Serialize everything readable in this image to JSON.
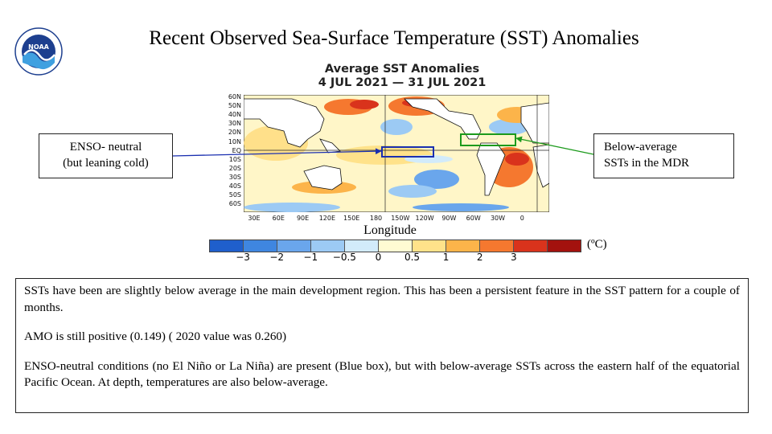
{
  "slide": {
    "title": "Recent Observed Sea-Surface Temperature (SST) Anomalies",
    "logo_name": "noaa-logo"
  },
  "map": {
    "title_line1": "Average SST Anomalies",
    "title_line2": "4 JUL 2021 — 31 JUL 2021",
    "lat_labels": [
      "60N",
      "50N",
      "40N",
      "30N",
      "20N",
      "10N",
      "EQ",
      "10S",
      "20S",
      "30S",
      "40S",
      "50S",
      "60S"
    ],
    "lon_labels": [
      "30E",
      "60E",
      "90E",
      "120E",
      "150E",
      "180",
      "150W",
      "120W",
      "90W",
      "60W",
      "30W",
      "0"
    ],
    "axis_title": "Longitude",
    "colorbar": {
      "colors": [
        "#1f5fcc",
        "#3f86e0",
        "#6aa6ec",
        "#9ccaf4",
        "#d2ebfa",
        "#fffbd3",
        "#ffe28a",
        "#fcb44a",
        "#f5782f",
        "#d9331c",
        "#a3120e"
      ],
      "ticks": [
        "−3",
        "−2",
        "−1",
        "−0.5",
        "0",
        "0.5",
        "1",
        "2",
        "3"
      ],
      "unit": "(ºC)"
    },
    "boxes": [
      {
        "name": "enso-box",
        "color": "#1a2fb0"
      },
      {
        "name": "mdr-box",
        "color": "#1c9a1c"
      }
    ]
  },
  "callouts": {
    "left_line1": "ENSO- neutral",
    "left_line2": "(but leaning  cold)",
    "right_line1": "Below-average",
    "right_line2": "SSTs in the MDR"
  },
  "body": {
    "para1": "SSTs have been are slightly below average in the main development region. This has been a persistent feature in the SST pattern for a couple of months.",
    "para2": "AMO is still  positive (0.149) ( 2020 value was 0.260)",
    "para3": "ENSO-neutral conditions (no El Niño or La Niña) are present (Blue box), but with below-average SSTs across the eastern half of the equatorial Pacific Ocean.  At depth, temperatures are also below-average."
  }
}
